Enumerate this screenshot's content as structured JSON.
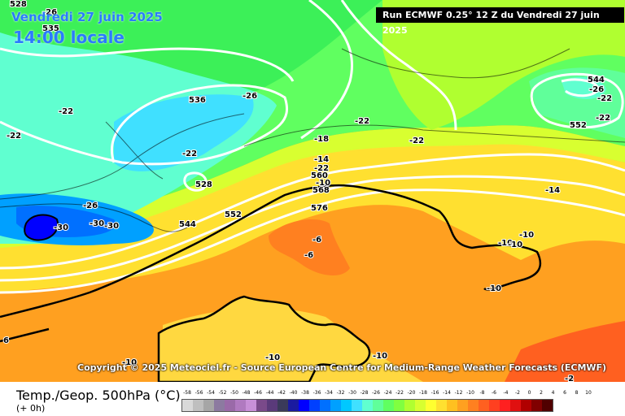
{
  "header": {
    "date_text": "Vendredi 27 juin 2025",
    "time_text": "14:00 locale",
    "run_text": "Run ECMWF 0.25° 12 Z du Vendredi 27 juin 2025"
  },
  "copyright": "Copyright © 2025 Meteociel.fr - Source European Centre for Medium-Range Weather Forecasts (ECMWF)",
  "footer": {
    "title": "Temp./Geop. 500hPa (°C)",
    "subtitle": "(+ 0h)"
  },
  "legend": {
    "labels": [
      "-58",
      "-56",
      "-54",
      "-52",
      "-50",
      "-48",
      "-46",
      "-44",
      "-42",
      "-40",
      "-38",
      "-36",
      "-34",
      "-32",
      "-30",
      "-28",
      "-26",
      "-24",
      "-22",
      "-20",
      "-18",
      "-16",
      "-14",
      "-12",
      "-10",
      "-8",
      "-6",
      "-4",
      "-2",
      "0",
      "2",
      "4",
      "6",
      "8",
      "10"
    ],
    "colors": [
      "#d9d9d9",
      "#bfbfbf",
      "#a6a6a6",
      "#8c7aa0",
      "#9a6aa8",
      "#b07ac0",
      "#c890d8",
      "#7a4a8a",
      "#5a3a7a",
      "#3a3a5a",
      "#1a1aa0",
      "#0000ff",
      "#0040ff",
      "#0070ff",
      "#00a0ff",
      "#00c8ff",
      "#40e0ff",
      "#60ffd0",
      "#60ff9a",
      "#60ff60",
      "#80ff40",
      "#b0ff30",
      "#d8ff30",
      "#ffff30",
      "#ffe030",
      "#ffc020",
      "#ffa020",
      "#ff8020",
      "#ff6020",
      "#ff4020",
      "#ff2020",
      "#e01010",
      "#b00000",
      "#800000",
      "#500000"
    ]
  },
  "map_labels": [
    {
      "text": "528"
    },
    {
      "text": "535"
    },
    {
      "text": "-26"
    },
    {
      "text": "-22"
    },
    {
      "text": "-22"
    },
    {
      "text": "536"
    },
    {
      "text": "-26"
    },
    {
      "text": "-22"
    },
    {
      "text": "-22"
    },
    {
      "text": "528"
    },
    {
      "text": "-26"
    },
    {
      "text": "-30"
    },
    {
      "text": "-30"
    },
    {
      "text": "-30"
    },
    {
      "text": "544"
    },
    {
      "text": "552"
    },
    {
      "text": "-18"
    },
    {
      "text": "-14"
    },
    {
      "text": "560"
    },
    {
      "text": "-10"
    },
    {
      "text": "568"
    },
    {
      "text": "576"
    },
    {
      "text": "-6"
    },
    {
      "text": "-6"
    },
    {
      "text": "-22"
    },
    {
      "text": "544"
    },
    {
      "text": "-26"
    },
    {
      "text": "-22"
    },
    {
      "text": "552"
    },
    {
      "text": "-22"
    },
    {
      "text": "-14"
    },
    {
      "text": "-10"
    },
    {
      "text": "-10"
    },
    {
      "text": "-10"
    },
    {
      "text": "-10"
    },
    {
      "text": "-10"
    },
    {
      "text": "-10"
    },
    {
      "text": "-10"
    },
    {
      "text": "-2"
    },
    {
      "text": "6"
    },
    {
      "text": "-22"
    }
  ]
}
